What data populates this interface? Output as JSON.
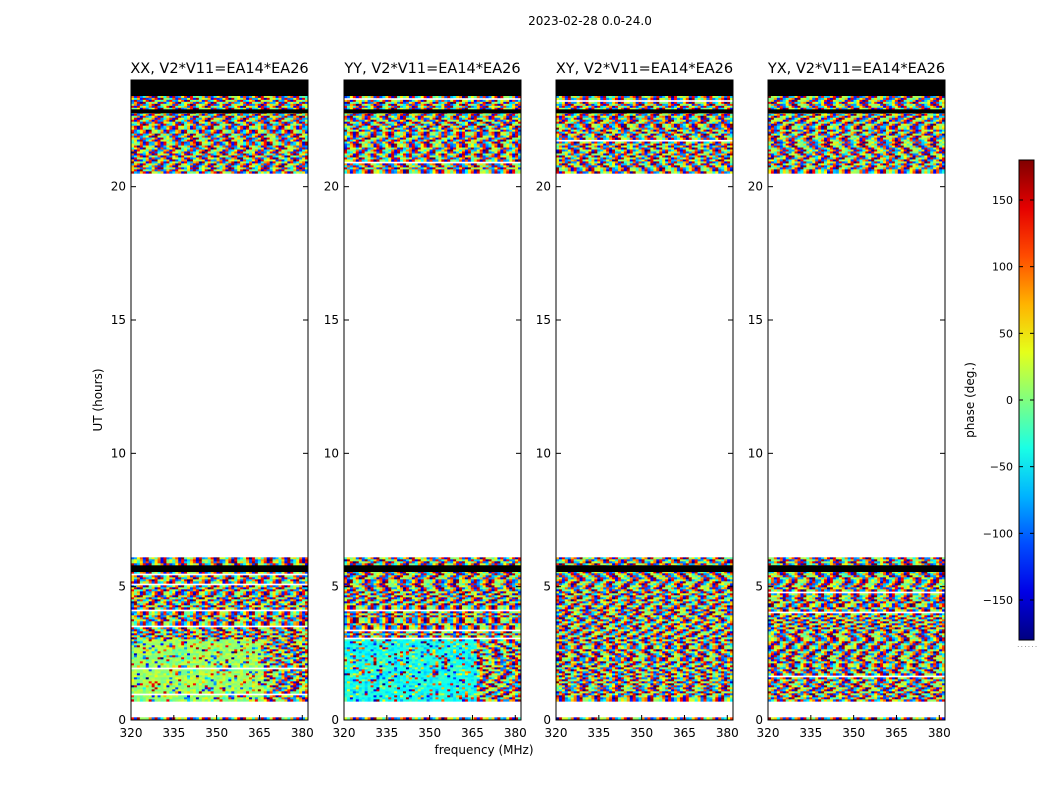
{
  "figure": {
    "suptitle": "2023-02-28 0.0-24.0",
    "xlabel": "frequency (MHz)",
    "ylabel": "UT (hours)"
  },
  "chart_data": {
    "type": "heatmap",
    "title": "2023-02-28 0.0-24.0",
    "xlabel": "frequency (MHz)",
    "ylabel": "UT (hours)",
    "xlim": [
      320,
      382
    ],
    "ylim": [
      0,
      24
    ],
    "x_ticks": [
      320,
      335,
      350,
      365,
      380
    ],
    "y_ticks": [
      0,
      5,
      10,
      15,
      20
    ],
    "panels": [
      {
        "title": "XX, V2*V11=EA14*EA26",
        "dominant_phase_low_band": 10
      },
      {
        "title": "YY, V2*V11=EA14*EA26",
        "dominant_phase_low_band": -40
      },
      {
        "title": "XY, V2*V11=EA14*EA26",
        "dominant_phase_low_band": null
      },
      {
        "title": "YX, V2*V11=EA14*EA26",
        "dominant_phase_low_band": null
      }
    ],
    "data_ranges_ut": [
      [
        0.0,
        0.1
      ],
      [
        0.7,
        6.1
      ],
      [
        20.5,
        24.0
      ]
    ],
    "flagged_ranges_ut": [
      [
        5.55,
        5.8
      ],
      [
        22.75,
        22.9
      ],
      [
        23.4,
        24.0
      ]
    ],
    "colorbar": {
      "label": "phase (deg.)",
      "colormap": "jet",
      "vmin": -180,
      "vmax": 180,
      "ticks": [
        -150,
        -100,
        -50,
        0,
        50,
        100,
        150
      ]
    }
  }
}
